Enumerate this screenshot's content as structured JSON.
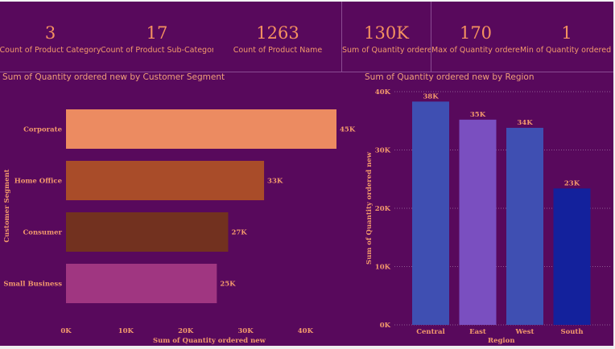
{
  "kpis": [
    {
      "value": "3",
      "label": "Count of Product Category"
    },
    {
      "value": "17",
      "label": "Count of Product Sub-Category"
    },
    {
      "value": "1263",
      "label": "Count of Product Name"
    },
    {
      "value": "130K",
      "label": "Sum of Quantity ordered new"
    },
    {
      "value": "170",
      "label": "Max of Quantity ordered new"
    },
    {
      "value": "1",
      "label": "Min of Quantity ordered new"
    }
  ],
  "colors": {
    "background": "#58095c",
    "text": "#f39a6c",
    "grid": "#8e5a92"
  },
  "chart_data": [
    {
      "type": "bar",
      "orientation": "horizontal",
      "title": "Sum of Quantity ordered new by Customer Segment",
      "xlabel": "Sum of Quantity ordered new",
      "ylabel": "Customer Segment",
      "categories": [
        "Corporate",
        "Home Office",
        "Consumer",
        "Small Business"
      ],
      "values": [
        45200,
        33100,
        27100,
        25200
      ],
      "data_labels": [
        "45K",
        "33K",
        "27K",
        "25K"
      ],
      "bar_colors": [
        "#ec8b61",
        "#a94c29",
        "#72311f",
        "#a03681"
      ],
      "xlim": [
        0,
        45200
      ],
      "xticks": [
        0,
        10000,
        20000,
        30000,
        40000
      ],
      "xtick_labels": [
        "0K",
        "10K",
        "20K",
        "30K",
        "40K"
      ],
      "grid": false
    },
    {
      "type": "bar",
      "orientation": "vertical",
      "title": "Sum of Quantity ordered new by Region",
      "xlabel": "Region",
      "ylabel": "Sum of Quantity ordered new",
      "categories": [
        "Central",
        "East",
        "West",
        "South"
      ],
      "values": [
        38300,
        35200,
        33800,
        23400
      ],
      "data_labels": [
        "38K",
        "35K",
        "34K",
        "23K"
      ],
      "bar_colors": [
        "#3f4fb2",
        "#7a4fc0",
        "#3f4fb2",
        "#13219c"
      ],
      "ylim": [
        0,
        40000
      ],
      "yticks": [
        0,
        10000,
        20000,
        30000,
        40000
      ],
      "ytick_labels": [
        "0K",
        "10K",
        "20K",
        "30K",
        "40K"
      ],
      "grid": true
    }
  ]
}
